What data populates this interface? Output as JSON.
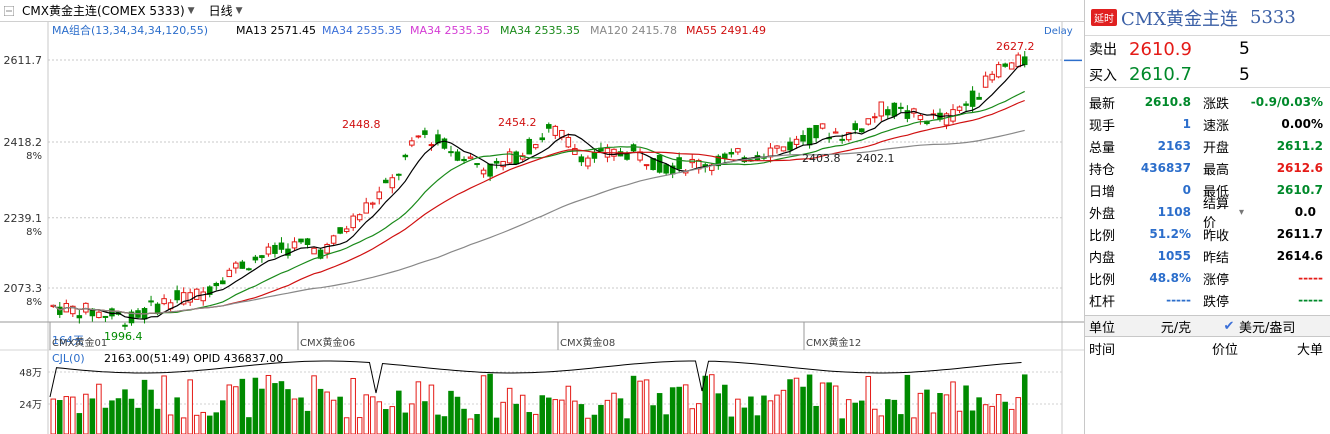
{
  "toolbar": {
    "symbol_selector": "CMX黄金主连(COMEX 5333)",
    "period_selector": "日线",
    "delay_label": "Delay"
  },
  "ma_legend": {
    "group": "MA组合(13,34,34,34,120,55)",
    "items": [
      {
        "label": "MA13 2571.45",
        "color": "#000000"
      },
      {
        "label": "MA34 2535.35",
        "color": "#3a6fd8"
      },
      {
        "label": "MA34 2535.35",
        "color": "#d43bd4"
      },
      {
        "label": "MA34 2535.35",
        "color": "#1a8a1a"
      },
      {
        "label": "MA120 2415.78",
        "color": "#888888"
      },
      {
        "label": "MA55 2491.49",
        "color": "#d01010"
      }
    ]
  },
  "price_axis": [
    {
      "value": "2611.7"
    },
    {
      "value": "2418.2",
      "pct": "8%"
    },
    {
      "value": "2239.1",
      "pct": "8%"
    },
    {
      "value": "2073.3",
      "pct": "8%"
    }
  ],
  "annotations": {
    "high": "2627.2",
    "peak1": "2448.8",
    "peak2": "2454.2",
    "low1": "2403.8",
    "low2": "2402.1",
    "start_low": "1996.4",
    "days": "164天"
  },
  "month_labels": [
    "CMX黄金01",
    "CMX黄金06",
    "CMX黄金08",
    "CMX黄金12"
  ],
  "volume_panel": {
    "title": "CJL(0)",
    "values": "2163.00(51:49)  OPID 436837.00",
    "axis": [
      "48万",
      "24万"
    ]
  },
  "side": {
    "badge": "延时",
    "name": "CMX黄金主连",
    "code": "5333",
    "sell_label": "卖出",
    "sell_price": "2610.9",
    "sell_qty": "5",
    "buy_label": "买入",
    "buy_price": "2610.7",
    "buy_qty": "5",
    "quote_rows": [
      {
        "l1": "最新",
        "v1": "2610.8",
        "c1": "green",
        "l2": "涨跌",
        "v2": "-0.9/0.03%",
        "c2": "green"
      },
      {
        "l1": "现手",
        "v1": "1",
        "c1": "blue",
        "l2": "速涨",
        "v2": "0.00%",
        "c2": "black"
      },
      {
        "l1": "总量",
        "v1": "2163",
        "c1": "blue",
        "l2": "开盘",
        "v2": "2611.2",
        "c2": "green"
      },
      {
        "l1": "持仓",
        "v1": "436837",
        "c1": "blue",
        "l2": "最高",
        "v2": "2612.6",
        "c2": "red"
      },
      {
        "l1": "日增",
        "v1": "0",
        "c1": "blue",
        "l2": "最低",
        "v2": "2610.7",
        "c2": "green"
      },
      {
        "l1": "外盘",
        "v1": "1108",
        "c1": "blue",
        "l2": "结算价",
        "v2": "0.0",
        "c2": "black"
      },
      {
        "l1": "比例",
        "v1": "51.2%",
        "c1": "blue",
        "l2": "昨收",
        "v2": "2611.7",
        "c2": "black"
      },
      {
        "l1": "内盘",
        "v1": "1055",
        "c1": "blue",
        "l2": "昨结",
        "v2": "2614.6",
        "c2": "black"
      },
      {
        "l1": "比例",
        "v1": "48.8%",
        "c1": "blue",
        "l2": "涨停",
        "v2": "-----",
        "c2": "red"
      },
      {
        "l1": "杠杆",
        "v1": "-----",
        "c1": "blue",
        "l2": "跌停",
        "v2": "-----",
        "c2": "green"
      }
    ],
    "unit_label": "单位",
    "unit_value": "元/克",
    "currency_value": "美元/盎司",
    "ticks_headers": [
      "时间",
      "价位",
      "大单"
    ]
  }
}
